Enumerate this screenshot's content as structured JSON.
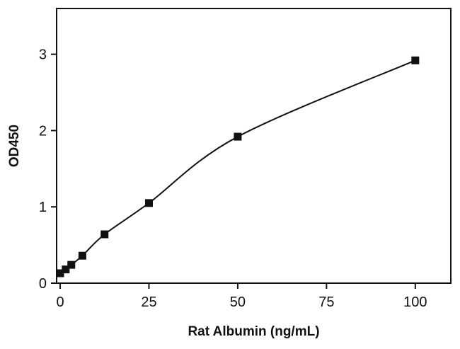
{
  "chart_data": {
    "type": "scatter",
    "title": "",
    "xlabel": "Rat Albumin (ng/mL)",
    "ylabel": "OD450",
    "xlim": [
      -1,
      110
    ],
    "ylim": [
      0,
      3.6
    ],
    "xticks": [
      0,
      25,
      50,
      75,
      100
    ],
    "yticks": [
      0,
      1,
      2,
      3
    ],
    "grid": false,
    "colors": {
      "marker": "#111111",
      "line": "#111111",
      "axis": "#111111"
    },
    "series": [
      {
        "name": "",
        "x": [
          0,
          1.56,
          3.13,
          6.25,
          12.5,
          25,
          50,
          100
        ],
        "y": [
          0.13,
          0.18,
          0.24,
          0.36,
          0.64,
          1.05,
          1.92,
          2.92
        ],
        "fit": "4PL curve"
      }
    ]
  }
}
